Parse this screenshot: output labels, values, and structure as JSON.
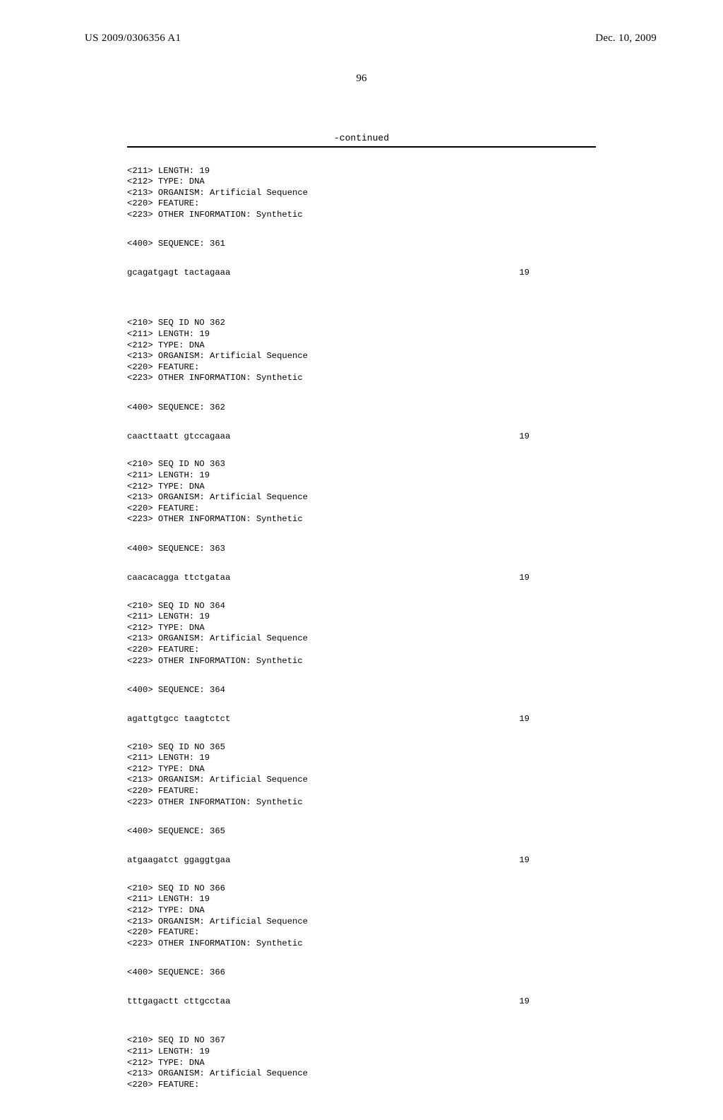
{
  "header": {
    "pub_number": "US 2009/0306356 A1",
    "pub_date": "Dec. 10, 2009"
  },
  "page_number": "96",
  "continued_label": "-continued",
  "top_partial": {
    "lines": [
      "<211> LENGTH: 19",
      "<212> TYPE: DNA",
      "<213> ORGANISM: Artificial Sequence",
      "<220> FEATURE:",
      "<223> OTHER INFORMATION: Synthetic"
    ],
    "seq_label": "<400> SEQUENCE: 361",
    "sequence": "gcagatgagt tactagaaa",
    "length": "19"
  },
  "entries": [
    {
      "lines": [
        "<210> SEQ ID NO 362",
        "<211> LENGTH: 19",
        "<212> TYPE: DNA",
        "<213> ORGANISM: Artificial Sequence",
        "<220> FEATURE:",
        "<223> OTHER INFORMATION: Synthetic"
      ],
      "seq_label": "<400> SEQUENCE: 362",
      "sequence": "caacttaatt gtccagaaa",
      "length": "19"
    },
    {
      "lines": [
        "<210> SEQ ID NO 363",
        "<211> LENGTH: 19",
        "<212> TYPE: DNA",
        "<213> ORGANISM: Artificial Sequence",
        "<220> FEATURE:",
        "<223> OTHER INFORMATION: Synthetic"
      ],
      "seq_label": "<400> SEQUENCE: 363",
      "sequence": "caacacagga ttctgataa",
      "length": "19"
    },
    {
      "lines": [
        "<210> SEQ ID NO 364",
        "<211> LENGTH: 19",
        "<212> TYPE: DNA",
        "<213> ORGANISM: Artificial Sequence",
        "<220> FEATURE:",
        "<223> OTHER INFORMATION: Synthetic"
      ],
      "seq_label": "<400> SEQUENCE: 364",
      "sequence": "agattgtgcc taagtctct",
      "length": "19"
    },
    {
      "lines": [
        "<210> SEQ ID NO 365",
        "<211> LENGTH: 19",
        "<212> TYPE: DNA",
        "<213> ORGANISM: Artificial Sequence",
        "<220> FEATURE:",
        "<223> OTHER INFORMATION: Synthetic"
      ],
      "seq_label": "<400> SEQUENCE: 365",
      "sequence": "atgaagatct ggaggtgaa",
      "length": "19"
    },
    {
      "lines": [
        "<210> SEQ ID NO 366",
        "<211> LENGTH: 19",
        "<212> TYPE: DNA",
        "<213> ORGANISM: Artificial Sequence",
        "<220> FEATURE:",
        "<223> OTHER INFORMATION: Synthetic"
      ],
      "seq_label": "<400> SEQUENCE: 366",
      "sequence": "tttgagactt cttgcctaa",
      "length": "19"
    }
  ],
  "bottom_partial": {
    "lines": [
      "<210> SEQ ID NO 367",
      "<211> LENGTH: 19",
      "<212> TYPE: DNA",
      "<213> ORGANISM: Artificial Sequence",
      "<220> FEATURE:"
    ]
  }
}
